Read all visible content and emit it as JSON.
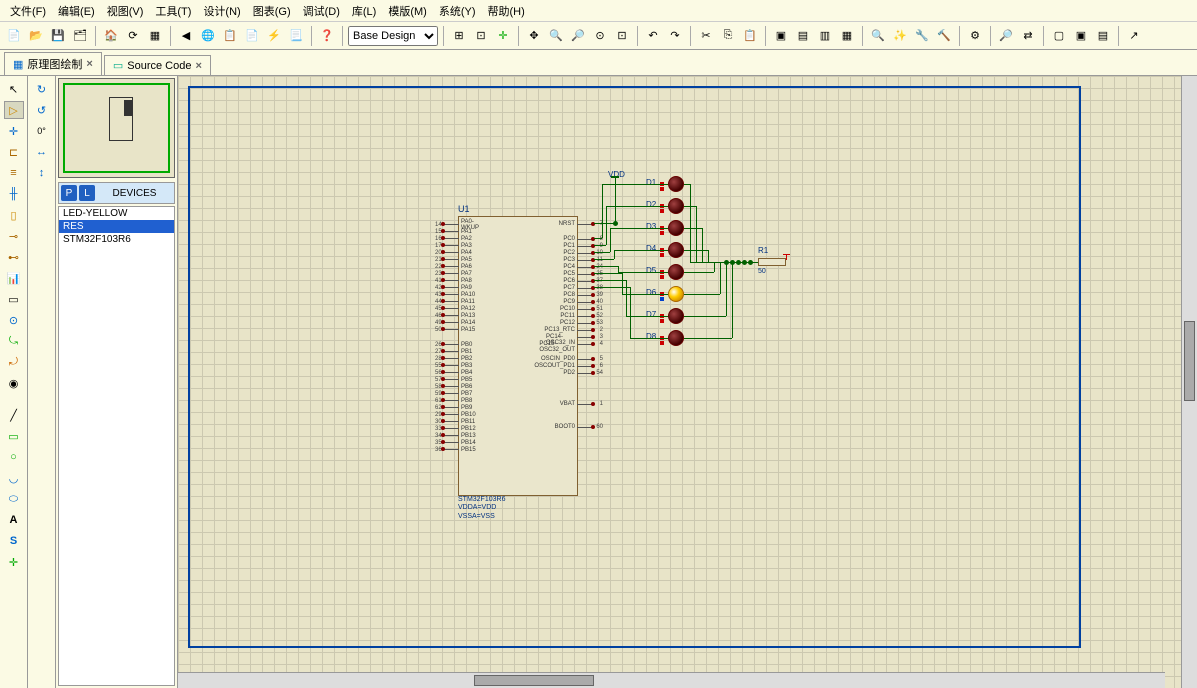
{
  "menu": [
    "文件(F)",
    "编辑(E)",
    "视图(V)",
    "工具(T)",
    "设计(N)",
    "图表(G)",
    "调试(D)",
    "库(L)",
    "模版(M)",
    "系统(Y)",
    "帮助(H)"
  ],
  "design_selector": "Base Design",
  "tabs": [
    {
      "icon": "schematic",
      "label": "原理图绘制"
    },
    {
      "icon": "source",
      "label": "Source Code"
    }
  ],
  "devices_header": "DEVICES",
  "devices": [
    "LED-YELLOW",
    "RES",
    "STM32F103R6"
  ],
  "devices_selected": 1,
  "rotation": "0°",
  "component": {
    "ref": "U1",
    "sublabels": [
      "STM32F103R6",
      "VDDA=VDD",
      "VSSA=VSS"
    ],
    "left_pins": [
      {
        "num": "14",
        "name": "PA0-WKUP"
      },
      {
        "num": "15",
        "name": "PA1"
      },
      {
        "num": "16",
        "name": "PA2"
      },
      {
        "num": "17",
        "name": "PA3"
      },
      {
        "num": "20",
        "name": "PA4"
      },
      {
        "num": "21",
        "name": "PA5"
      },
      {
        "num": "22",
        "name": "PA6"
      },
      {
        "num": "23",
        "name": "PA7"
      },
      {
        "num": "41",
        "name": "PA8"
      },
      {
        "num": "42",
        "name": "PA9"
      },
      {
        "num": "43",
        "name": "PA10"
      },
      {
        "num": "44",
        "name": "PA11"
      },
      {
        "num": "45",
        "name": "PA12"
      },
      {
        "num": "46",
        "name": "PA13"
      },
      {
        "num": "49",
        "name": "PA14"
      },
      {
        "num": "50",
        "name": "PA15"
      },
      {
        "__gap": true
      },
      {
        "num": "26",
        "name": "PB0"
      },
      {
        "num": "27",
        "name": "PB1"
      },
      {
        "num": "28",
        "name": "PB2"
      },
      {
        "num": "55",
        "name": "PB3"
      },
      {
        "num": "56",
        "name": "PB4"
      },
      {
        "num": "57",
        "name": "PB5"
      },
      {
        "num": "58",
        "name": "PB6"
      },
      {
        "num": "59",
        "name": "PB7"
      },
      {
        "num": "61",
        "name": "PB8"
      },
      {
        "num": "62",
        "name": "PB9"
      },
      {
        "num": "29",
        "name": "PB10"
      },
      {
        "num": "30",
        "name": "PB11"
      },
      {
        "num": "33",
        "name": "PB12"
      },
      {
        "num": "34",
        "name": "PB13"
      },
      {
        "num": "35",
        "name": "PB14"
      },
      {
        "num": "36",
        "name": "PB15"
      }
    ],
    "right_pins": [
      {
        "num": "7",
        "name": "NRST"
      },
      {
        "__gap": true
      },
      {
        "num": "8",
        "name": "PC0"
      },
      {
        "num": "9",
        "name": "PC1"
      },
      {
        "num": "10",
        "name": "PC2"
      },
      {
        "num": "11",
        "name": "PC3"
      },
      {
        "num": "24",
        "name": "PC4"
      },
      {
        "num": "25",
        "name": "PC5"
      },
      {
        "num": "37",
        "name": "PC6"
      },
      {
        "num": "38",
        "name": "PC7"
      },
      {
        "num": "39",
        "name": "PC8"
      },
      {
        "num": "40",
        "name": "PC9"
      },
      {
        "num": "51",
        "name": "PC10"
      },
      {
        "num": "52",
        "name": "PC11"
      },
      {
        "num": "53",
        "name": "PC12"
      },
      {
        "num": "2",
        "name": "PC13_RTC"
      },
      {
        "num": "3",
        "name": "PC14-OSC32_IN"
      },
      {
        "num": "4",
        "name": "PC15-OSC32_OUT"
      },
      {
        "__gap": true
      },
      {
        "num": "5",
        "name": "OSCIN_PD0"
      },
      {
        "num": "6",
        "name": "OSCOUT_PD1"
      },
      {
        "num": "54",
        "name": "PD2"
      },
      {
        "__gap": true
      },
      {
        "__gap": true
      },
      {
        "__gap": true
      },
      {
        "num": "1",
        "name": "VBAT"
      },
      {
        "__gap": true
      },
      {
        "__gap": true
      },
      {
        "num": "60",
        "name": "BOOT0"
      }
    ]
  },
  "leds": [
    {
      "ref": "D1",
      "lit": false
    },
    {
      "ref": "D2",
      "lit": false
    },
    {
      "ref": "D3",
      "lit": false
    },
    {
      "ref": "D4",
      "lit": false
    },
    {
      "ref": "D5",
      "lit": false
    },
    {
      "ref": "D6",
      "lit": true
    },
    {
      "ref": "D7",
      "lit": false
    },
    {
      "ref": "D8",
      "lit": false
    }
  ],
  "resistor": {
    "ref": "R1",
    "value": "50"
  },
  "vdd_label": "VDD",
  "colors": {
    "canvas_bg": "#e8e4c8",
    "wire": "#006000",
    "chip_fill": "#eae6cc",
    "chip_border": "#806030",
    "sheet_border": "#0040a0",
    "led_dark": "#400000",
    "led_lit": "#ffcc00",
    "selection": "#2060d0"
  }
}
